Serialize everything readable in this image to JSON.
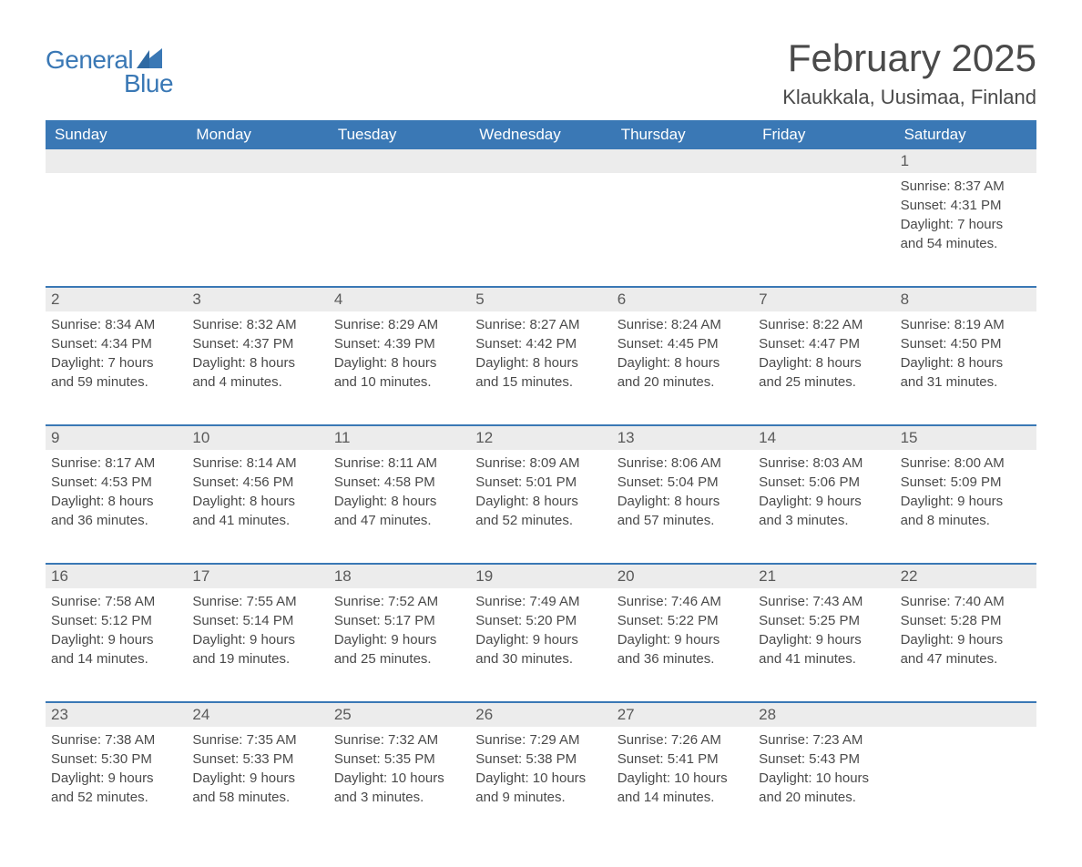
{
  "brand": {
    "general": "General",
    "blue": "Blue"
  },
  "title": "February 2025",
  "location": "Klaukkala, Uusimaa, Finland",
  "colors": {
    "header_bg": "#3a78b5",
    "header_text": "#ffffff",
    "daynum_bg": "#ececec",
    "text": "#4a4a4a",
    "rule": "#3a78b5",
    "page_bg": "#ffffff"
  },
  "day_names": [
    "Sunday",
    "Monday",
    "Tuesday",
    "Wednesday",
    "Thursday",
    "Friday",
    "Saturday"
  ],
  "weeks": [
    [
      {
        "n": "",
        "sunrise": "",
        "sunset": "",
        "daylight": ""
      },
      {
        "n": "",
        "sunrise": "",
        "sunset": "",
        "daylight": ""
      },
      {
        "n": "",
        "sunrise": "",
        "sunset": "",
        "daylight": ""
      },
      {
        "n": "",
        "sunrise": "",
        "sunset": "",
        "daylight": ""
      },
      {
        "n": "",
        "sunrise": "",
        "sunset": "",
        "daylight": ""
      },
      {
        "n": "",
        "sunrise": "",
        "sunset": "",
        "daylight": ""
      },
      {
        "n": "1",
        "sunrise": "Sunrise: 8:37 AM",
        "sunset": "Sunset: 4:31 PM",
        "daylight": "Daylight: 7 hours and 54 minutes."
      }
    ],
    [
      {
        "n": "2",
        "sunrise": "Sunrise: 8:34 AM",
        "sunset": "Sunset: 4:34 PM",
        "daylight": "Daylight: 7 hours and 59 minutes."
      },
      {
        "n": "3",
        "sunrise": "Sunrise: 8:32 AM",
        "sunset": "Sunset: 4:37 PM",
        "daylight": "Daylight: 8 hours and 4 minutes."
      },
      {
        "n": "4",
        "sunrise": "Sunrise: 8:29 AM",
        "sunset": "Sunset: 4:39 PM",
        "daylight": "Daylight: 8 hours and 10 minutes."
      },
      {
        "n": "5",
        "sunrise": "Sunrise: 8:27 AM",
        "sunset": "Sunset: 4:42 PM",
        "daylight": "Daylight: 8 hours and 15 minutes."
      },
      {
        "n": "6",
        "sunrise": "Sunrise: 8:24 AM",
        "sunset": "Sunset: 4:45 PM",
        "daylight": "Daylight: 8 hours and 20 minutes."
      },
      {
        "n": "7",
        "sunrise": "Sunrise: 8:22 AM",
        "sunset": "Sunset: 4:47 PM",
        "daylight": "Daylight: 8 hours and 25 minutes."
      },
      {
        "n": "8",
        "sunrise": "Sunrise: 8:19 AM",
        "sunset": "Sunset: 4:50 PM",
        "daylight": "Daylight: 8 hours and 31 minutes."
      }
    ],
    [
      {
        "n": "9",
        "sunrise": "Sunrise: 8:17 AM",
        "sunset": "Sunset: 4:53 PM",
        "daylight": "Daylight: 8 hours and 36 minutes."
      },
      {
        "n": "10",
        "sunrise": "Sunrise: 8:14 AM",
        "sunset": "Sunset: 4:56 PM",
        "daylight": "Daylight: 8 hours and 41 minutes."
      },
      {
        "n": "11",
        "sunrise": "Sunrise: 8:11 AM",
        "sunset": "Sunset: 4:58 PM",
        "daylight": "Daylight: 8 hours and 47 minutes."
      },
      {
        "n": "12",
        "sunrise": "Sunrise: 8:09 AM",
        "sunset": "Sunset: 5:01 PM",
        "daylight": "Daylight: 8 hours and 52 minutes."
      },
      {
        "n": "13",
        "sunrise": "Sunrise: 8:06 AM",
        "sunset": "Sunset: 5:04 PM",
        "daylight": "Daylight: 8 hours and 57 minutes."
      },
      {
        "n": "14",
        "sunrise": "Sunrise: 8:03 AM",
        "sunset": "Sunset: 5:06 PM",
        "daylight": "Daylight: 9 hours and 3 minutes."
      },
      {
        "n": "15",
        "sunrise": "Sunrise: 8:00 AM",
        "sunset": "Sunset: 5:09 PM",
        "daylight": "Daylight: 9 hours and 8 minutes."
      }
    ],
    [
      {
        "n": "16",
        "sunrise": "Sunrise: 7:58 AM",
        "sunset": "Sunset: 5:12 PM",
        "daylight": "Daylight: 9 hours and 14 minutes."
      },
      {
        "n": "17",
        "sunrise": "Sunrise: 7:55 AM",
        "sunset": "Sunset: 5:14 PM",
        "daylight": "Daylight: 9 hours and 19 minutes."
      },
      {
        "n": "18",
        "sunrise": "Sunrise: 7:52 AM",
        "sunset": "Sunset: 5:17 PM",
        "daylight": "Daylight: 9 hours and 25 minutes."
      },
      {
        "n": "19",
        "sunrise": "Sunrise: 7:49 AM",
        "sunset": "Sunset: 5:20 PM",
        "daylight": "Daylight: 9 hours and 30 minutes."
      },
      {
        "n": "20",
        "sunrise": "Sunrise: 7:46 AM",
        "sunset": "Sunset: 5:22 PM",
        "daylight": "Daylight: 9 hours and 36 minutes."
      },
      {
        "n": "21",
        "sunrise": "Sunrise: 7:43 AM",
        "sunset": "Sunset: 5:25 PM",
        "daylight": "Daylight: 9 hours and 41 minutes."
      },
      {
        "n": "22",
        "sunrise": "Sunrise: 7:40 AM",
        "sunset": "Sunset: 5:28 PM",
        "daylight": "Daylight: 9 hours and 47 minutes."
      }
    ],
    [
      {
        "n": "23",
        "sunrise": "Sunrise: 7:38 AM",
        "sunset": "Sunset: 5:30 PM",
        "daylight": "Daylight: 9 hours and 52 minutes."
      },
      {
        "n": "24",
        "sunrise": "Sunrise: 7:35 AM",
        "sunset": "Sunset: 5:33 PM",
        "daylight": "Daylight: 9 hours and 58 minutes."
      },
      {
        "n": "25",
        "sunrise": "Sunrise: 7:32 AM",
        "sunset": "Sunset: 5:35 PM",
        "daylight": "Daylight: 10 hours and 3 minutes."
      },
      {
        "n": "26",
        "sunrise": "Sunrise: 7:29 AM",
        "sunset": "Sunset: 5:38 PM",
        "daylight": "Daylight: 10 hours and 9 minutes."
      },
      {
        "n": "27",
        "sunrise": "Sunrise: 7:26 AM",
        "sunset": "Sunset: 5:41 PM",
        "daylight": "Daylight: 10 hours and 14 minutes."
      },
      {
        "n": "28",
        "sunrise": "Sunrise: 7:23 AM",
        "sunset": "Sunset: 5:43 PM",
        "daylight": "Daylight: 10 hours and 20 minutes."
      },
      {
        "n": "",
        "sunrise": "",
        "sunset": "",
        "daylight": ""
      }
    ]
  ]
}
